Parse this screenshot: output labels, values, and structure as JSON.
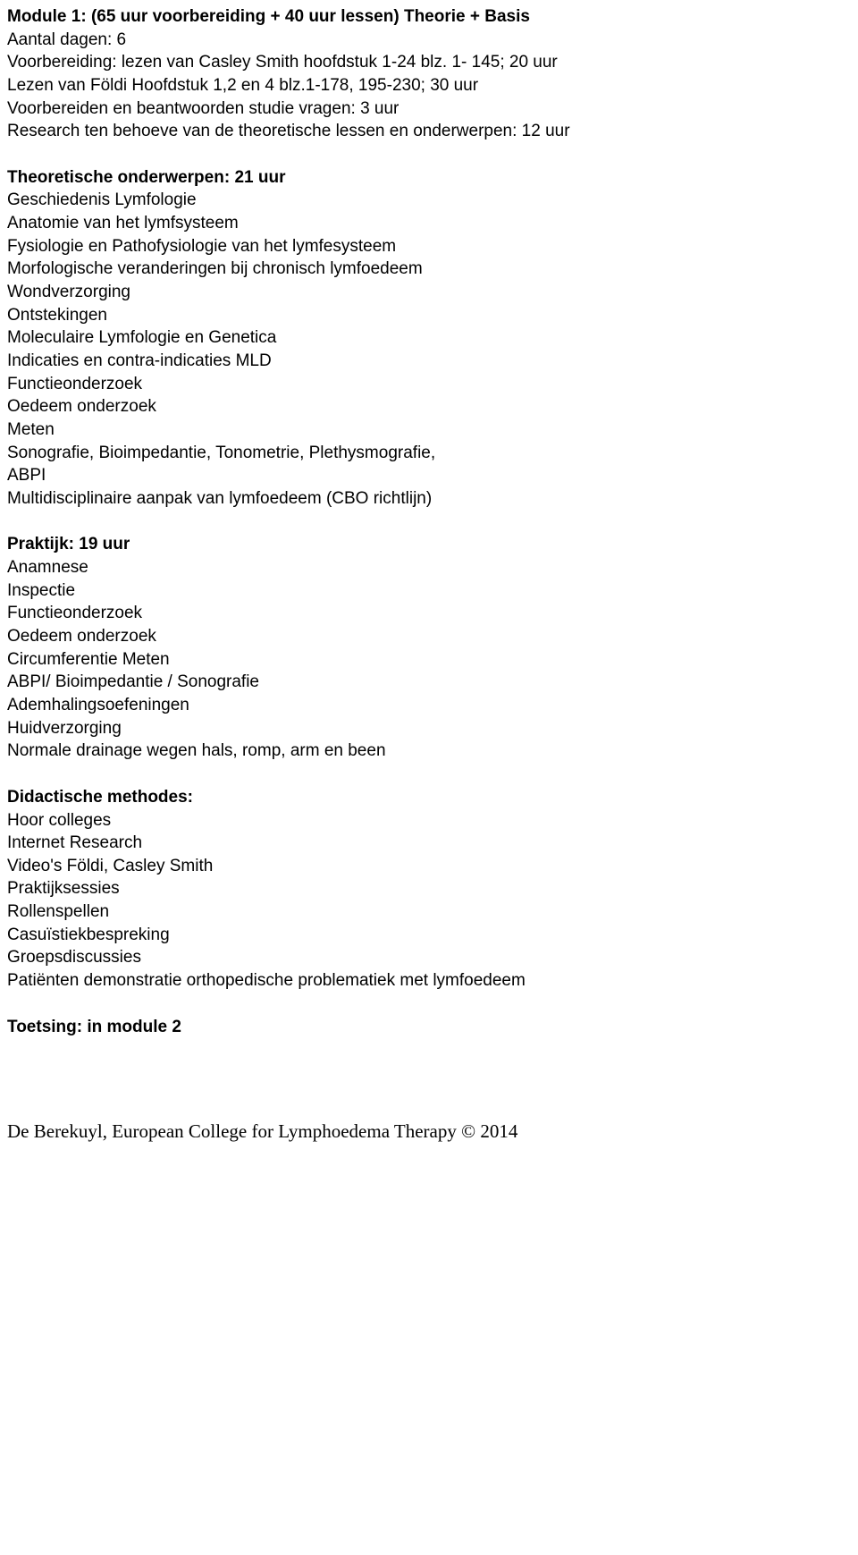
{
  "module": {
    "title": "Module 1: (65 uur voorbereiding + 40 uur lessen) Theorie + Basis",
    "days": "Aantal dagen: 6",
    "prep1": "Voorbereiding: lezen van Casley Smith hoofdstuk 1-24 blz. 1- 145; 20 uur",
    "prep2": "Lezen van Földi Hoofdstuk 1,2 en 4 blz.1-178, 195-230; 30 uur",
    "prep3": "Voorbereiden en beantwoorden studie vragen: 3 uur",
    "prep4": "Research ten behoeve van de theoretische lessen en onderwerpen: 12 uur"
  },
  "theory": {
    "heading": "Theoretische onderwerpen: 21 uur",
    "items": [
      "Geschiedenis Lymfologie",
      "Anatomie van het lymfsysteem",
      "Fysiologie en Pathofysiologie van het lymfesysteem",
      "Morfologische veranderingen bij chronisch lymfoedeem",
      "Wondverzorging",
      "Ontstekingen",
      "Moleculaire Lymfologie en Genetica",
      "Indicaties en contra-indicaties MLD",
      "Functieonderzoek",
      "Oedeem onderzoek",
      "Meten",
      "Sonografie, Bioimpedantie, Tonometrie, Plethysmografie,",
      "ABPI",
      "Multidisciplinaire aanpak van lymfoedeem (CBO richtlijn)"
    ]
  },
  "practice": {
    "heading": "Praktijk: 19 uur",
    "items": [
      "Anamnese",
      "Inspectie",
      "Functieonderzoek",
      "Oedeem onderzoek",
      "Circumferentie Meten",
      "ABPI/ Bioimpedantie / Sonografie",
      "Ademhalingsoefeningen",
      "Huidverzorging",
      "Normale drainage wegen hals, romp, arm en been"
    ]
  },
  "didactic": {
    "heading": "Didactische methodes:",
    "items": [
      "Hoor colleges",
      "Internet Research",
      "Video's  Földi, Casley Smith",
      "Praktijksessies",
      "Rollenspellen",
      "Casuïstiekbespreking",
      "Groepsdiscussies",
      "Patiënten demonstratie orthopedische problematiek met lymfoedeem"
    ]
  },
  "assessment": {
    "heading": "Toetsing: in module 2"
  },
  "footer": {
    "text": "De Berekuyl, European College for Lymphoedema Therapy © 2014"
  }
}
